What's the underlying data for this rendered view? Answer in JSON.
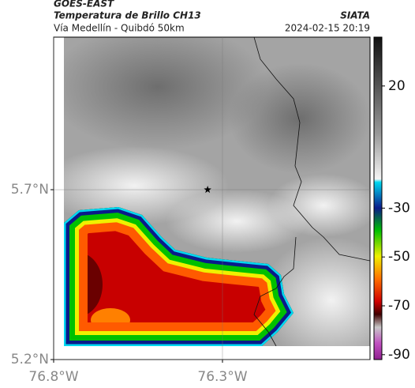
{
  "header": {
    "satellite": "GOES-EAST",
    "title": "Temperatura de Brillo CH13",
    "subtitle": "Vía Medellín - Quibdó 50km",
    "source": "SIATA",
    "datetime": "2024-02-15 20:19"
  },
  "map": {
    "xlim": [
      -76.8,
      -75.863
    ],
    "ylim": [
      5.2,
      6.149
    ],
    "xticks": [
      {
        "value": -76.8,
        "label": "76.8°W"
      },
      {
        "value": -76.3,
        "label": "76.3°W"
      }
    ],
    "yticks": [
      {
        "value": 5.2,
        "label": "5.2°N"
      },
      {
        "value": 5.7,
        "label": "5.7°N"
      }
    ],
    "grid": true,
    "marker": {
      "lon": -76.344,
      "lat": 5.7
    }
  },
  "colorbar": {
    "lim": [
      -92,
      40
    ],
    "ticks": [
      20,
      -30,
      -50,
      -70,
      -90
    ]
  }
}
